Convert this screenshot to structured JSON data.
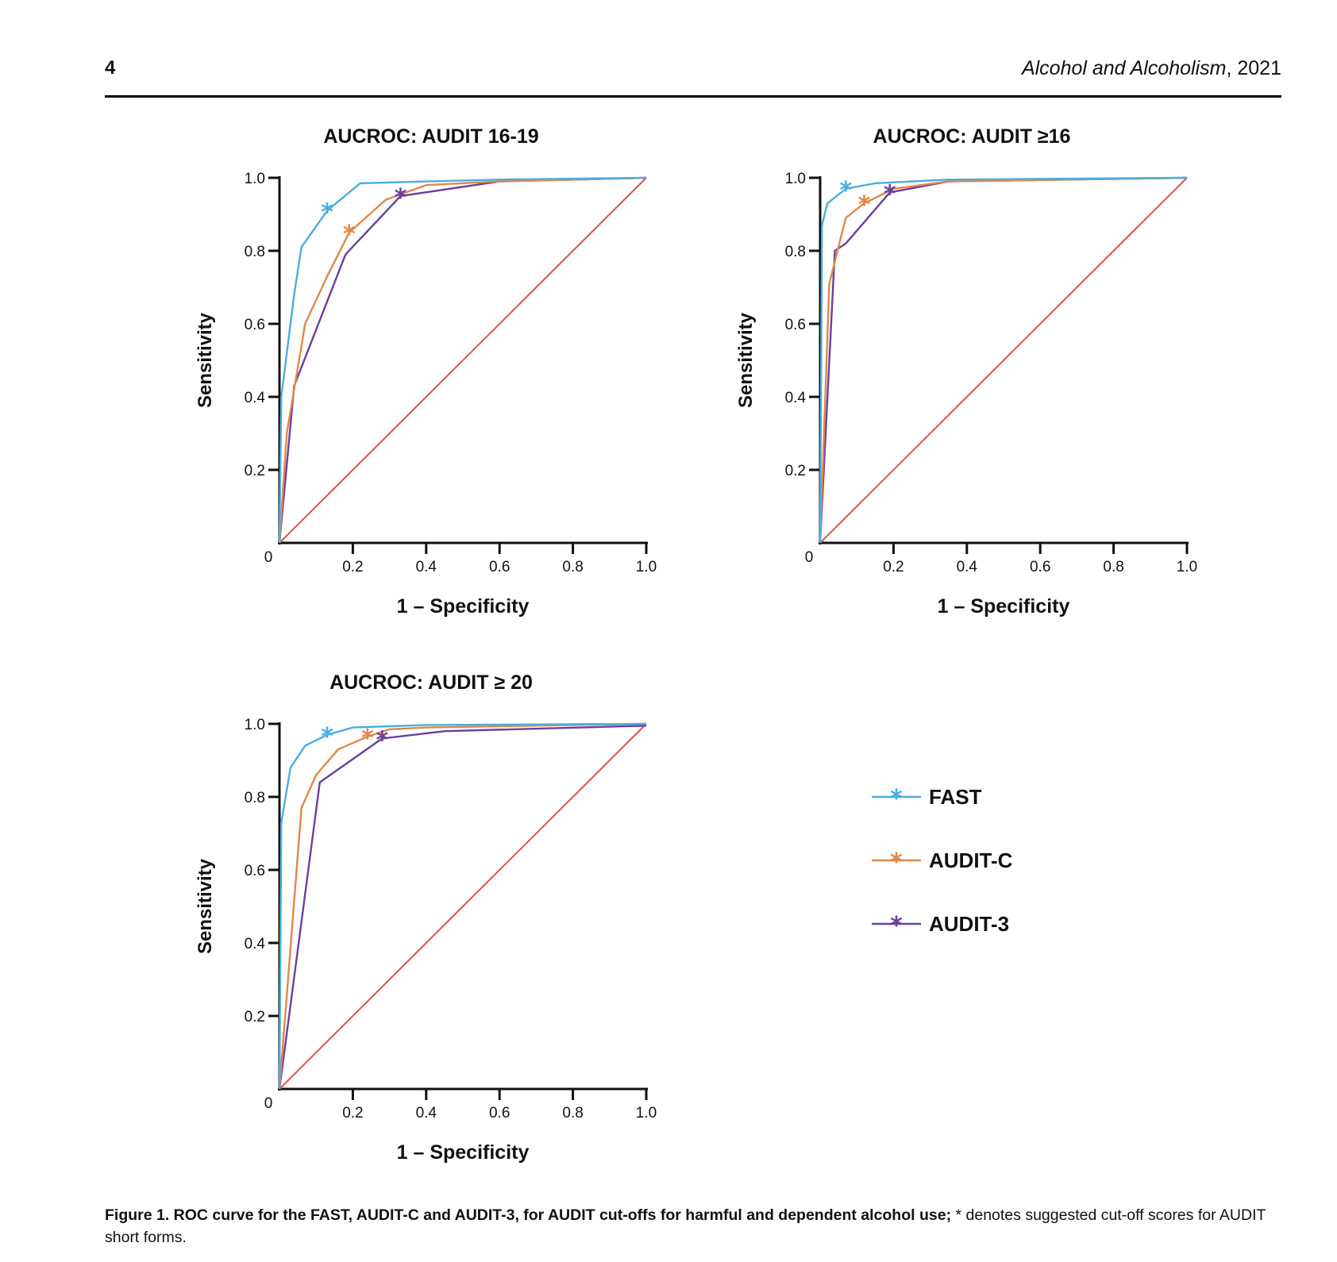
{
  "header": {
    "page_number": "4",
    "journal_name": "Alcohol and Alcoholism",
    "journal_year": ", 2021"
  },
  "caption": {
    "bold": "Figure 1. ROC curve for the FAST, AUDIT-C and AUDIT-3, for AUDIT cut-offs for harmful and dependent alcohol use;",
    "rest": " * denotes suggested cut-off scores for AUDIT short forms."
  },
  "legend": [
    {
      "name": "FAST",
      "color": "#4aaee0"
    },
    {
      "name": "AUDIT-C",
      "color": "#e0884a"
    },
    {
      "name": "AUDIT-3",
      "color": "#6a3fa0"
    }
  ],
  "colors": {
    "diagonal": "#d9534f",
    "axis": "#111111"
  },
  "chart_data": [
    {
      "type": "line",
      "title": "AUCROC: AUDIT 16-19",
      "xlabel": "1 – Specificity",
      "ylabel": "Sensitivity",
      "xlim": [
        0,
        1
      ],
      "ylim": [
        0,
        1
      ],
      "x_ticks": [
        "0",
        "0.2",
        "0.4",
        "0.6",
        "0.8",
        "1.0"
      ],
      "y_ticks": [
        "0.2",
        "0.4",
        "0.6",
        "0.8",
        "1.0"
      ],
      "reference_line": [
        [
          0,
          0
        ],
        [
          1,
          1
        ]
      ],
      "series": [
        {
          "name": "FAST",
          "points": [
            [
              0,
              0
            ],
            [
              0.005,
              0.4
            ],
            [
              0.04,
              0.68
            ],
            [
              0.06,
              0.81
            ],
            [
              0.13,
              0.91
            ],
            [
              0.22,
              0.985
            ],
            [
              0.4,
              0.99
            ],
            [
              0.6,
              0.995
            ],
            [
              1,
              1
            ]
          ],
          "cutoff": [
            0.13,
            0.91
          ]
        },
        {
          "name": "AUDIT-C",
          "points": [
            [
              0,
              0
            ],
            [
              0.02,
              0.3
            ],
            [
              0.07,
              0.6
            ],
            [
              0.13,
              0.73
            ],
            [
              0.19,
              0.85
            ],
            [
              0.29,
              0.94
            ],
            [
              0.4,
              0.98
            ],
            [
              0.6,
              0.99
            ],
            [
              1,
              1
            ]
          ],
          "cutoff": [
            0.19,
            0.85
          ]
        },
        {
          "name": "AUDIT-3",
          "points": [
            [
              0,
              0
            ],
            [
              0.04,
              0.43
            ],
            [
              0.18,
              0.79
            ],
            [
              0.33,
              0.95
            ],
            [
              0.6,
              0.99
            ],
            [
              1,
              1
            ]
          ],
          "cutoff": [
            0.33,
            0.95
          ]
        }
      ]
    },
    {
      "type": "line",
      "title": "AUCROC: AUDIT ≥16",
      "xlabel": "1 – Specificity",
      "ylabel": "Sensitivity",
      "xlim": [
        0,
        1
      ],
      "ylim": [
        0,
        1
      ],
      "x_ticks": [
        "0",
        "0.2",
        "0.4",
        "0.6",
        "0.8",
        "1.0"
      ],
      "y_ticks": [
        "0.2",
        "0.4",
        "0.6",
        "0.8",
        "1.0"
      ],
      "reference_line": [
        [
          0,
          0
        ],
        [
          1,
          1
        ]
      ],
      "series": [
        {
          "name": "FAST",
          "points": [
            [
              0,
              0
            ],
            [
              0.005,
              0.87
            ],
            [
              0.02,
              0.93
            ],
            [
              0.07,
              0.97
            ],
            [
              0.15,
              0.985
            ],
            [
              0.35,
              0.995
            ],
            [
              1,
              1
            ]
          ],
          "cutoff": [
            0.07,
            0.97
          ]
        },
        {
          "name": "AUDIT-C",
          "points": [
            [
              0,
              0
            ],
            [
              0.025,
              0.71
            ],
            [
              0.07,
              0.89
            ],
            [
              0.12,
              0.93
            ],
            [
              0.2,
              0.97
            ],
            [
              0.35,
              0.99
            ],
            [
              1,
              1
            ]
          ],
          "cutoff": [
            0.12,
            0.93
          ]
        },
        {
          "name": "AUDIT-3",
          "points": [
            [
              0,
              0
            ],
            [
              0.04,
              0.8
            ],
            [
              0.07,
              0.82
            ],
            [
              0.19,
              0.96
            ],
            [
              0.35,
              0.99
            ],
            [
              1,
              1
            ]
          ],
          "cutoff": [
            0.19,
            0.96
          ]
        }
      ]
    },
    {
      "type": "line",
      "title": "AUCROC: AUDIT ≥ 20",
      "xlabel": "1 – Specificity",
      "ylabel": "Sensitivity",
      "xlim": [
        0,
        1
      ],
      "ylim": [
        0,
        1
      ],
      "x_ticks": [
        "0",
        "0.2",
        "0.4",
        "0.6",
        "0.8",
        "1.0"
      ],
      "y_ticks": [
        "0.2",
        "0.4",
        "0.6",
        "0.8",
        "1.0"
      ],
      "reference_line": [
        [
          0,
          0
        ],
        [
          1,
          1
        ]
      ],
      "series": [
        {
          "name": "FAST",
          "points": [
            [
              0,
              0
            ],
            [
              0.005,
              0.73
            ],
            [
              0.03,
              0.88
            ],
            [
              0.07,
              0.94
            ],
            [
              0.13,
              0.97
            ],
            [
              0.2,
              0.99
            ],
            [
              0.4,
              0.997
            ],
            [
              1,
              1
            ]
          ],
          "cutoff": [
            0.13,
            0.97
          ]
        },
        {
          "name": "AUDIT-C",
          "points": [
            [
              0,
              0
            ],
            [
              0.06,
              0.77
            ],
            [
              0.1,
              0.86
            ],
            [
              0.16,
              0.93
            ],
            [
              0.24,
              0.965
            ],
            [
              0.3,
              0.985
            ],
            [
              0.4,
              0.99
            ],
            [
              1,
              1
            ]
          ],
          "cutoff": [
            0.24,
            0.965
          ]
        },
        {
          "name": "AUDIT-3",
          "points": [
            [
              0,
              0
            ],
            [
              0.11,
              0.84
            ],
            [
              0.28,
              0.96
            ],
            [
              0.45,
              0.98
            ],
            [
              1,
              0.995
            ]
          ],
          "cutoff": [
            0.28,
            0.96
          ]
        }
      ]
    }
  ]
}
